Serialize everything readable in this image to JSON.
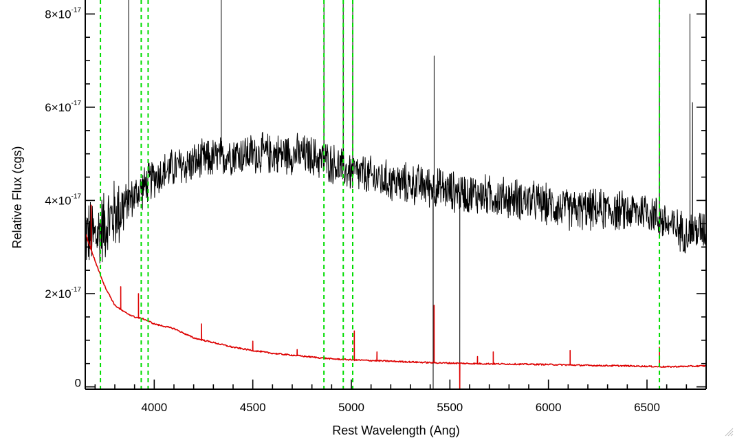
{
  "chart_data": {
    "type": "line",
    "title": "",
    "xlabel": "Rest Wavelength (Ang)",
    "ylabel": "Relative Flux (cgs)",
    "xlim": [
      3650,
      6800
    ],
    "ylim": [
      -5e-19,
      8.3e-17
    ],
    "x_ticks": [
      4000,
      4500,
      5000,
      5500,
      6000,
      6500
    ],
    "x_tick_labels": [
      "4000",
      "4500",
      "5000",
      "5500",
      "6000",
      "6500"
    ],
    "y_ticks": [
      0,
      2e-17,
      4e-17,
      6e-17,
      8e-17
    ],
    "y_tick_labels": [
      {
        "mantissa": "0",
        "exponent": ""
      },
      {
        "mantissa": "2×10",
        "exponent": "-17"
      },
      {
        "mantissa": "4×10",
        "exponent": "-17"
      },
      {
        "mantissa": "6×10",
        "exponent": "-17"
      },
      {
        "mantissa": "8×10",
        "exponent": "-17"
      }
    ],
    "grid": false,
    "reference_lines": {
      "color": "#00dd00",
      "style": "dashed",
      "x": [
        3727,
        3934,
        3969,
        4861,
        4959,
        5007,
        6563
      ]
    },
    "series": [
      {
        "color": "#000000",
        "style": "noisy-spectrum",
        "x": [
          3650,
          3700,
          3750,
          3800,
          3900,
          4000,
          4100,
          4200,
          4300,
          4400,
          4500,
          4600,
          4700,
          4800,
          4900,
          5000,
          5100,
          5200,
          5300,
          5400,
          5500,
          5600,
          5700,
          5800,
          5900,
          6000,
          6100,
          6200,
          6300,
          6400,
          6500,
          6600,
          6700,
          6800
        ],
        "y": [
          3.3e-17,
          3.2e-17,
          3.5e-17,
          3.7e-17,
          4.1e-17,
          4.5e-17,
          4.7e-17,
          4.8e-17,
          4.9e-17,
          5e-17,
          5e-17,
          5e-17,
          5e-17,
          4.95e-17,
          4.8e-17,
          4.6e-17,
          4.5e-17,
          4.4e-17,
          4.35e-17,
          4.3e-17,
          4.2e-17,
          4.15e-17,
          4.1e-17,
          4.05e-17,
          4e-17,
          3.9e-17,
          3.8e-17,
          3.8e-17,
          3.8e-17,
          3.75e-17,
          3.8e-17,
          3.5e-17,
          3.3e-17,
          3.4e-17
        ],
        "spikes": [
          {
            "x": 3870,
            "y": 8.3e-17
          },
          {
            "x": 4340,
            "y": 8.3e-17
          },
          {
            "x": 4861,
            "y": 8.3e-17
          },
          {
            "x": 4959,
            "y": 8.3e-17
          },
          {
            "x": 5007,
            "y": 8.3e-17
          },
          {
            "x": 5420,
            "y": 7.1e-17
          },
          {
            "x": 6563,
            "y": 8.3e-17
          },
          {
            "x": 6718,
            "y": 8e-17
          },
          {
            "x": 6731,
            "y": 6.1e-17
          }
        ],
        "dips": [
          {
            "x": 5415,
            "y": -5e-19
          },
          {
            "x": 5550,
            "y": -5e-19
          }
        ]
      },
      {
        "color": "#dd0000",
        "style": "smooth-continuum",
        "x": [
          3650,
          3700,
          3750,
          3800,
          3850,
          3900,
          3950,
          4000,
          4100,
          4200,
          4300,
          4400,
          4500,
          4600,
          4700,
          4800,
          4900,
          5000,
          5200,
          5400,
          5600,
          5800,
          6000,
          6200,
          6400,
          6600,
          6800
        ],
        "y": [
          3.3e-17,
          2.7e-17,
          2.15e-17,
          1.75e-17,
          1.6e-17,
          1.5e-17,
          1.45e-17,
          1.35e-17,
          1.25e-17,
          1.05e-17,
          9.5e-18,
          8.5e-18,
          7.8e-18,
          7.2e-18,
          6.8e-18,
          6.4e-18,
          6e-18,
          5.8e-18,
          5.5e-18,
          5.2e-18,
          5e-18,
          4.9e-18,
          4.8e-18,
          4.6e-18,
          4.5e-18,
          4.3e-18,
          4.5e-18
        ],
        "spikes": [
          {
            "x": 3680,
            "y": 3.9e-17
          },
          {
            "x": 3830,
            "y": 2.15e-17
          },
          {
            "x": 3920,
            "y": 2e-17
          },
          {
            "x": 4240,
            "y": 1.35e-17
          },
          {
            "x": 4500,
            "y": 9.8e-18
          },
          {
            "x": 4725,
            "y": 8e-18
          },
          {
            "x": 5015,
            "y": 1.2e-17
          },
          {
            "x": 5130,
            "y": 7.5e-18
          },
          {
            "x": 5420,
            "y": 1.75e-17
          },
          {
            "x": 5640,
            "y": 6.5e-18
          },
          {
            "x": 5720,
            "y": 7.5e-18
          },
          {
            "x": 6110,
            "y": 7.8e-18
          },
          {
            "x": 6563,
            "y": 8.5e-18
          }
        ],
        "dips": [
          {
            "x": 5550,
            "y": -5e-19
          }
        ]
      }
    ]
  }
}
